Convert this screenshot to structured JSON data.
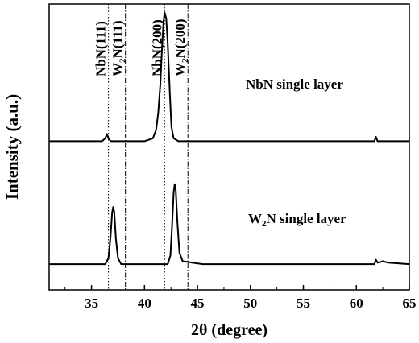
{
  "chart_data": {
    "type": "line",
    "title": "",
    "xlabel": "2θ (degree)",
    "ylabel": "Intensity (a.u.)",
    "xlim": [
      31,
      65
    ],
    "x_ticks": [
      35,
      40,
      45,
      50,
      55,
      60,
      65
    ],
    "y_ticks_shown": false,
    "grid": false,
    "reference_lines": [
      {
        "label_main": "NbN(111)",
        "x": 36.6,
        "style": "dotted"
      },
      {
        "label_main": "W",
        "label_sub": "2",
        "label_rest": "N(111)",
        "x": 38.2,
        "style": "dash-dot"
      },
      {
        "label_main": "NbN(200)",
        "x": 41.9,
        "style": "dotted"
      },
      {
        "label_main": "W",
        "label_sub": "2",
        "label_rest": "N(200)",
        "x": 44.1,
        "style": "dash-dot"
      }
    ],
    "series": [
      {
        "label_main": "NbN single layer",
        "baseline": 0.52,
        "points": [
          [
            31,
            0.52
          ],
          [
            36.0,
            0.52
          ],
          [
            36.3,
            0.53
          ],
          [
            36.45,
            0.545
          ],
          [
            36.6,
            0.53
          ],
          [
            36.8,
            0.52
          ],
          [
            40.0,
            0.52
          ],
          [
            40.8,
            0.53
          ],
          [
            41.1,
            0.56
          ],
          [
            41.3,
            0.62
          ],
          [
            41.5,
            0.72
          ],
          [
            41.65,
            0.84
          ],
          [
            41.8,
            0.94
          ],
          [
            41.9,
            0.97
          ],
          [
            42.05,
            0.95
          ],
          [
            42.2,
            0.86
          ],
          [
            42.4,
            0.68
          ],
          [
            42.55,
            0.57
          ],
          [
            42.75,
            0.53
          ],
          [
            43.2,
            0.52
          ],
          [
            61.7,
            0.52
          ],
          [
            61.85,
            0.535
          ],
          [
            62.0,
            0.52
          ],
          [
            65,
            0.52
          ]
        ]
      },
      {
        "label_main": "W",
        "label_sub": "2",
        "label_rest": "N single layer",
        "baseline": 0.09,
        "points": [
          [
            31,
            0.09
          ],
          [
            36.3,
            0.09
          ],
          [
            36.6,
            0.11
          ],
          [
            36.8,
            0.19
          ],
          [
            36.95,
            0.27
          ],
          [
            37.05,
            0.29
          ],
          [
            37.15,
            0.27
          ],
          [
            37.3,
            0.18
          ],
          [
            37.5,
            0.11
          ],
          [
            37.8,
            0.09
          ],
          [
            42.2,
            0.09
          ],
          [
            42.45,
            0.12
          ],
          [
            42.6,
            0.22
          ],
          [
            42.75,
            0.34
          ],
          [
            42.85,
            0.37
          ],
          [
            42.95,
            0.35
          ],
          [
            43.1,
            0.24
          ],
          [
            43.3,
            0.13
          ],
          [
            43.6,
            0.1
          ],
          [
            44.5,
            0.095
          ],
          [
            45.5,
            0.09
          ],
          [
            61.7,
            0.09
          ],
          [
            61.85,
            0.105
          ],
          [
            62.0,
            0.095
          ],
          [
            62.5,
            0.1
          ],
          [
            63.0,
            0.095
          ],
          [
            65,
            0.09
          ]
        ]
      }
    ]
  }
}
